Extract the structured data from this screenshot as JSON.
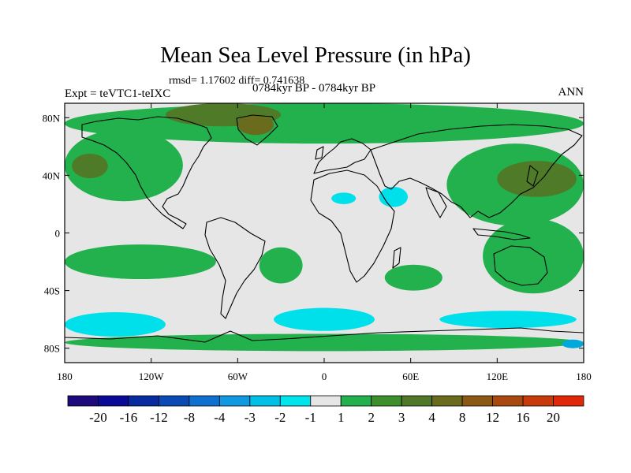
{
  "title": "Mean Sea Level Pressure (in hPa)",
  "stats": "rmsd= 1.17602 diff= 0.741638",
  "experiment": "Expt = teVTC1-teIXC",
  "period": "0784kyr BP - 0784kyr BP",
  "season": "ANN",
  "map": {
    "lon_range": [
      -180,
      180
    ],
    "lat_range": [
      -90,
      90
    ],
    "lon_ticks": [
      {
        "value": -180,
        "label": "180"
      },
      {
        "value": -120,
        "label": "120W"
      },
      {
        "value": -60,
        "label": "60W"
      },
      {
        "value": 0,
        "label": "0"
      },
      {
        "value": 60,
        "label": "60E"
      },
      {
        "value": 120,
        "label": "120E"
      },
      {
        "value": 180,
        "label": "180"
      }
    ],
    "lat_ticks": [
      {
        "value": 80,
        "label": "80N"
      },
      {
        "value": 40,
        "label": "40N"
      },
      {
        "value": 0,
        "label": "0"
      },
      {
        "value": -40,
        "label": "40S"
      },
      {
        "value": -80,
        "label": "80S"
      }
    ],
    "ocean_color": "#e6e6e6",
    "coast_color": "#000000",
    "field_regions": [
      {
        "name": "north-pacific-high",
        "level": "1 to 2",
        "color": "#22b14c",
        "lon": [
          -180,
          -98
        ],
        "lat": [
          22,
          72
        ]
      },
      {
        "name": "north-pacific-core",
        "level": "2 to 3",
        "color": "#4f7a28",
        "lon": [
          -175,
          -150
        ],
        "lat": [
          38,
          55
        ]
      },
      {
        "name": "arctic-band",
        "level": "1 to 2",
        "color": "#22b14c",
        "lon": [
          -180,
          180
        ],
        "lat": [
          62,
          90
        ]
      },
      {
        "name": "arctic-core",
        "level": "2 to 3",
        "color": "#4f7a28",
        "lon": [
          -110,
          -30
        ],
        "lat": [
          74,
          90
        ]
      },
      {
        "name": "greenland-core",
        "level": "3 to 4",
        "color": "#6b6b1e",
        "lon": [
          -60,
          -35
        ],
        "lat": [
          68,
          82
        ]
      },
      {
        "name": "siberia",
        "level": "1 to 2",
        "color": "#22b14c",
        "lon": [
          85,
          180
        ],
        "lat": [
          5,
          62
        ]
      },
      {
        "name": "siberia-core",
        "level": "2 to 3",
        "color": "#4f7a28",
        "lon": [
          120,
          175
        ],
        "lat": [
          25,
          50
        ]
      },
      {
        "name": "tropical-pacific-south",
        "level": "1 to 2",
        "color": "#22b14c",
        "lon": [
          -180,
          -75
        ],
        "lat": [
          -32,
          -8
        ]
      },
      {
        "name": "south-atlantic",
        "level": "1 to 2",
        "color": "#22b14c",
        "lon": [
          -45,
          -15
        ],
        "lat": [
          -35,
          -10
        ]
      },
      {
        "name": "south-indian",
        "level": "1 to 2",
        "color": "#22b14c",
        "lon": [
          42,
          82
        ],
        "lat": [
          -40,
          -22
        ]
      },
      {
        "name": "australia-west-pacific",
        "level": "1 to 2",
        "color": "#22b14c",
        "lon": [
          110,
          180
        ],
        "lat": [
          -42,
          10
        ]
      },
      {
        "name": "southern-ocean-pacific",
        "level": "-2 to -1",
        "color": "#00e0ea",
        "lon": [
          -180,
          -110
        ],
        "lat": [
          -72,
          -55
        ]
      },
      {
        "name": "southern-ocean-atlantic",
        "level": "-2 to -1",
        "color": "#00e0ea",
        "lon": [
          -35,
          35
        ],
        "lat": [
          -68,
          -52
        ]
      },
      {
        "name": "southern-ocean-indian",
        "level": "-2 to -1",
        "color": "#00e0ea",
        "lon": [
          80,
          175
        ],
        "lat": [
          -66,
          -54
        ]
      },
      {
        "name": "antarctic-coast",
        "level": "1 to 2",
        "color": "#22b14c",
        "lon": [
          -180,
          180
        ],
        "lat": [
          -82,
          -70
        ]
      },
      {
        "name": "sahara-low",
        "level": "-2 to -1",
        "color": "#00e0ea",
        "lon": [
          5,
          22
        ],
        "lat": [
          20,
          28
        ]
      },
      {
        "name": "arabia-low",
        "level": "-2 to -1",
        "color": "#00e0ea",
        "lon": [
          38,
          58
        ],
        "lat": [
          18,
          32
        ]
      },
      {
        "name": "ross-sea",
        "level": "-3 to -2",
        "color": "#00a8dc",
        "lon": [
          165,
          180
        ],
        "lat": [
          -80,
          -74
        ]
      }
    ]
  },
  "colorbar": {
    "colors": [
      "#1e0a7a",
      "#0a0a96",
      "#082ca0",
      "#0a4ab4",
      "#1070d0",
      "#1098e0",
      "#00c0e6",
      "#00e4ec",
      "#e6e6e6",
      "#22b14c",
      "#3c8f2c",
      "#507828",
      "#6b6b1e",
      "#8a5a14",
      "#a84a10",
      "#c83a0a",
      "#e02808"
    ],
    "labels": [
      "-20",
      "-16",
      "-12",
      "-8",
      "-4",
      "-3",
      "-2",
      "-1",
      "1",
      "2",
      "3",
      "4",
      "8",
      "12",
      "16",
      "20"
    ]
  }
}
